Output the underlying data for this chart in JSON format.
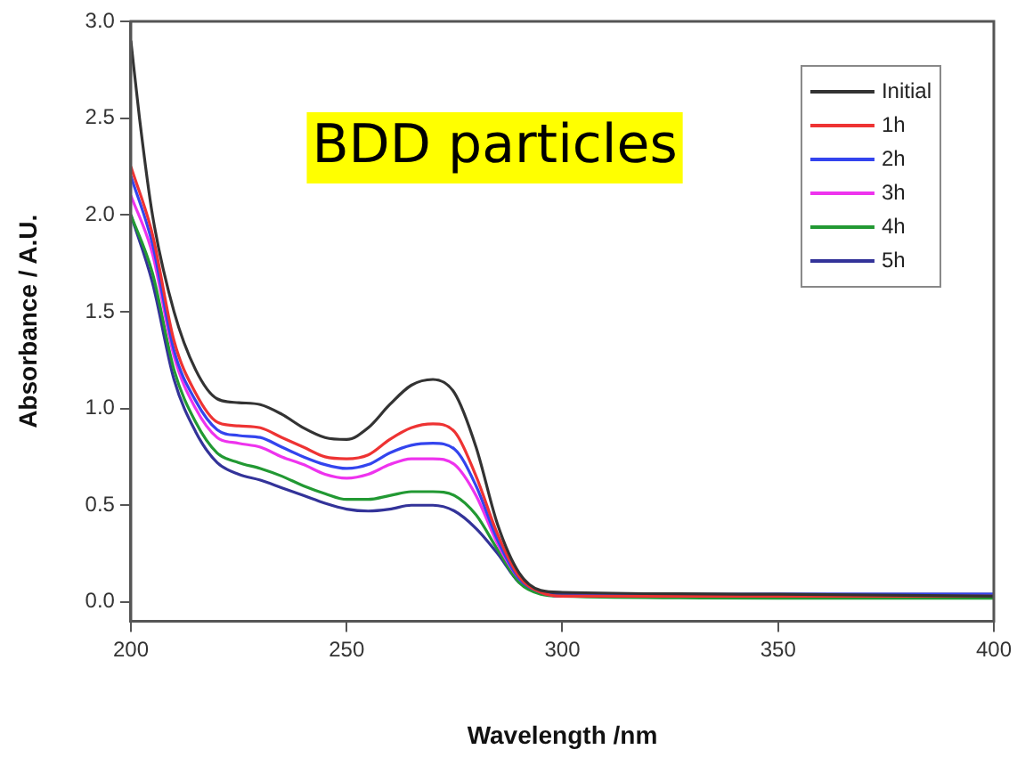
{
  "chart_data": {
    "type": "line",
    "title": "BDD particles",
    "xlabel": "Wavelength /nm",
    "ylabel": "Absorbance / A.U.",
    "x": [
      200,
      205,
      210,
      215,
      220,
      225,
      230,
      235,
      240,
      245,
      250,
      255,
      260,
      265,
      270,
      275,
      280,
      285,
      290,
      295,
      300,
      350,
      400
    ],
    "xlim": [
      200,
      400
    ],
    "xticks": [
      200,
      250,
      300,
      350,
      400
    ],
    "ylim": [
      -0.1,
      3.0
    ],
    "yticks": [
      {
        "value": 0,
        "label": "0.0"
      },
      {
        "value": 0.5,
        "label": "0.5"
      },
      {
        "value": 1,
        "label": "1.0"
      },
      {
        "value": 1.5,
        "label": "1.5"
      },
      {
        "value": 2,
        "label": "2.0"
      },
      {
        "value": 2.5,
        "label": "2.5"
      },
      {
        "value": 3,
        "label": "3.0"
      }
    ],
    "legend": "top right",
    "grid": false,
    "marker": "none",
    "line_style": "solid",
    "series": [
      {
        "name": "Initial",
        "color": "#333333",
        "x": [
          200,
          202,
          205,
          210,
          215,
          220,
          225,
          230,
          235,
          240,
          245,
          250,
          255,
          260,
          265,
          270,
          275,
          280,
          285,
          290,
          295,
          300,
          350,
          400
        ],
        "values": [
          2.9,
          2.5,
          2.0,
          1.5,
          1.2,
          1.05,
          1.03,
          1.02,
          0.97,
          0.9,
          0.85,
          0.84,
          0.9,
          1.02,
          1.12,
          1.15,
          1.08,
          0.8,
          0.4,
          0.15,
          0.06,
          0.05,
          0.04,
          0.03
        ]
      },
      {
        "name": "1h",
        "color": "#ee3333",
        "values": [
          2.25,
          1.9,
          1.35,
          1.08,
          0.93,
          0.91,
          0.9,
          0.85,
          0.8,
          0.75,
          0.74,
          0.76,
          0.84,
          0.9,
          0.92,
          0.88,
          0.65,
          0.35,
          0.13,
          0.05,
          0.03,
          0.03,
          0.03
        ]
      },
      {
        "name": "2h",
        "color": "#3344ee",
        "values": [
          2.2,
          1.85,
          1.3,
          1.04,
          0.89,
          0.86,
          0.85,
          0.8,
          0.75,
          0.71,
          0.69,
          0.71,
          0.77,
          0.81,
          0.82,
          0.79,
          0.6,
          0.32,
          0.12,
          0.05,
          0.03,
          0.04,
          0.04
        ]
      },
      {
        "name": "3h",
        "color": "#ee33ee",
        "values": [
          2.1,
          1.8,
          1.27,
          1.0,
          0.85,
          0.82,
          0.8,
          0.75,
          0.71,
          0.66,
          0.64,
          0.66,
          0.71,
          0.74,
          0.74,
          0.71,
          0.55,
          0.3,
          0.12,
          0.05,
          null,
          null,
          null
        ]
      },
      {
        "name": "4h",
        "color": "#229933",
        "values": [
          2.0,
          1.7,
          1.2,
          0.93,
          0.77,
          0.72,
          0.69,
          0.65,
          0.6,
          0.56,
          0.53,
          0.53,
          0.55,
          0.57,
          0.57,
          0.55,
          0.45,
          0.27,
          0.1,
          0.04,
          0.03,
          0.02,
          0.02
        ]
      },
      {
        "name": "5h",
        "color": "#333399",
        "values": [
          2.0,
          1.65,
          1.15,
          0.88,
          0.72,
          0.66,
          0.63,
          0.59,
          0.55,
          0.51,
          0.48,
          0.47,
          0.48,
          0.5,
          0.5,
          0.47,
          0.38,
          0.25,
          0.1,
          0.05,
          0.04,
          0.04,
          0.04
        ]
      }
    ]
  }
}
